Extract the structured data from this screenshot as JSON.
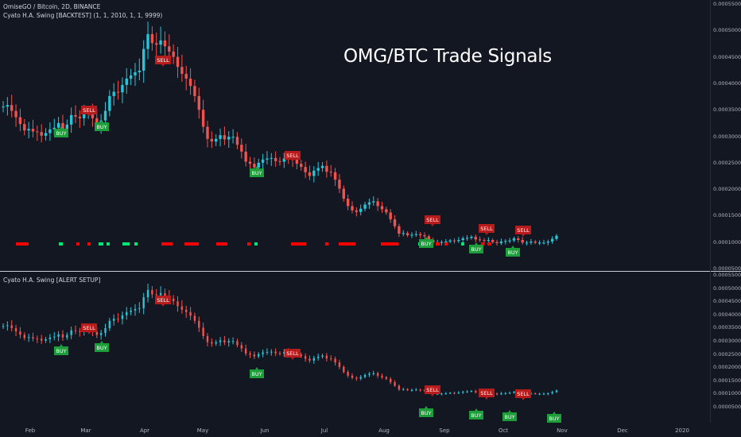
{
  "legend": {
    "symbol": "OmiseGO / Bitcoin, 2D, BINANCE",
    "indicator_top": "Cyato H.A. Swing [BACKTEST] (1, 1, 2010, 1, 1, 9999)",
    "indicator_bottom": "Cyato H.A. Swing [ALERT SETUP]"
  },
  "title": "OMG/BTC Trade Signals",
  "colors": {
    "background": "#131722",
    "up": "#26c6da",
    "down": "#ef5350",
    "buy": "#1e9e3a",
    "sell": "#b71c1c",
    "bar_red": "#ff0000",
    "bar_green": "#00e676"
  },
  "y_axis_top": [
    "0.0005500",
    "0.0005000",
    "0.0004500",
    "0.0004000",
    "0.0003500",
    "0.0003000",
    "0.0002500",
    "0.0002000",
    "0.0001500",
    "0.0001000",
    "0.0000500"
  ],
  "y_axis_bottom": [
    "0.0005500",
    "0.0005000",
    "0.0004500",
    "0.0004000",
    "0.0003500",
    "0.0003000",
    "0.0002500",
    "0.0002000",
    "0.0001500",
    "0.0001000",
    "0.0000500"
  ],
  "x_axis": [
    "Feb",
    "Mar",
    "Apr",
    "May",
    "Jun",
    "Jul",
    "Aug",
    "Sep",
    "Oct",
    "Nov",
    "Dec",
    "2020"
  ],
  "signal_labels": {
    "buy": "BUY",
    "sell": "SELL"
  },
  "chart_data": {
    "type": "candlestick",
    "x_range": [
      "Jan 2019",
      "Dec 2019"
    ],
    "ylim": [
      5e-05,
      0.00055
    ],
    "closes": [
      0.000356,
      0.000359,
      0.000348,
      0.000336,
      0.000323,
      0.000311,
      0.000314,
      0.000309,
      0.000308,
      0.000301,
      0.000306,
      0.000313,
      0.000316,
      0.000325,
      0.000313,
      0.000322,
      0.00034,
      0.000337,
      0.000334,
      0.000343,
      0.000347,
      0.000334,
      0.000322,
      0.00033,
      0.000348,
      0.000376,
      0.000384,
      0.000383,
      0.000397,
      0.000409,
      0.000415,
      0.000421,
      0.000424,
      0.000465,
      0.000493,
      0.000476,
      0.000473,
      0.000481,
      0.00047,
      0.00046,
      0.00045,
      0.000431,
      0.000418,
      0.000409,
      0.000395,
      0.000376,
      0.00035,
      0.000318,
      0.000295,
      0.00029,
      0.000295,
      0.000302,
      0.000294,
      0.000299,
      0.000299,
      0.000284,
      0.000271,
      0.000252,
      0.000248,
      0.000241,
      0.00025,
      0.000256,
      0.000258,
      0.000259,
      0.000253,
      0.000252,
      0.000258,
      0.000257,
      0.000256,
      0.000248,
      0.000242,
      0.000232,
      0.000225,
      0.000235,
      0.00024,
      0.000244,
      0.000233,
      0.000232,
      0.000218,
      0.000201,
      0.000182,
      0.000168,
      0.00016,
      0.000157,
      0.000163,
      0.000171,
      0.000175,
      0.000177,
      0.000168,
      0.000162,
      0.000156,
      0.000143,
      0.00013,
      0.000116,
      0.000117,
      0.000113,
      0.000114,
      0.000115,
      0.000113,
      0.000111,
      0.000104,
      9.9e-05,
      9.9e-05,
      0.0001,
      0.000101,
      0.000103,
      0.000102,
      0.000104,
      0.000107,
      0.000108,
      0.00011,
      0.000105,
      0.000104,
      0.000103,
      0.000104,
      0.0001,
      9.8e-05,
      0.000101,
      0.000102,
      0.000103,
      0.000107,
      0.000104,
      9.9e-05,
      9.9e-05,
      0.000101,
      9.9e-05,
      9.9e-05,
      9.9e-05,
      0.000101,
      0.000106,
      0.000112
    ],
    "signals": [
      {
        "type": "buy",
        "x": "Feb 17"
      },
      {
        "type": "sell",
        "x": "Mar 03"
      },
      {
        "type": "buy",
        "x": "Mar 09"
      },
      {
        "type": "sell",
        "x": "Apr 09"
      },
      {
        "type": "buy",
        "x": "May 28"
      },
      {
        "type": "sell",
        "x": "Jun 09"
      },
      {
        "type": "sell",
        "x": "Aug 22"
      },
      {
        "type": "buy",
        "x": "Aug 20"
      },
      {
        "type": "buy",
        "x": "Sep 14"
      },
      {
        "type": "sell",
        "x": "Sep 16"
      },
      {
        "type": "buy",
        "x": "Oct 04"
      },
      {
        "type": "sell",
        "x": "Oct 08"
      }
    ]
  }
}
